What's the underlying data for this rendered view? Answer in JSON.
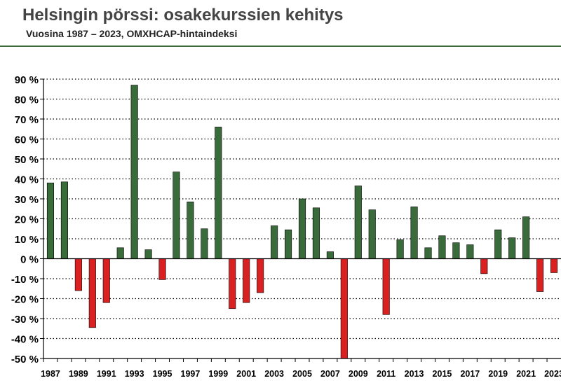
{
  "header": {
    "title": "Helsingin pörssi: osakekurssien kehitys",
    "subtitle": "Vuosina 1987 – 2023, OMXHCAP-hintaindeksi"
  },
  "colors": {
    "positive": "#3a6b3a",
    "negative": "#d92121",
    "rule": "#3a6b3a"
  },
  "chart_data": {
    "type": "bar",
    "title": "Helsingin pörssi: osakekurssien kehitys",
    "subtitle": "Vuosina 1987 – 2023, OMXHCAP-hintaindeksi",
    "xlabel": "",
    "ylabel": "",
    "ylim": [
      -50,
      90
    ],
    "ytick_step": 10,
    "y_tick_suffix": " %",
    "grid": "horizontal dotted",
    "legend": "none",
    "x_tick_labels_every": 2,
    "categories": [
      "1987",
      "1988",
      "1989",
      "1990",
      "1991",
      "1992",
      "1993",
      "1994",
      "1995",
      "1996",
      "1997",
      "1998",
      "1999",
      "2000",
      "2001",
      "2002",
      "2003",
      "2004",
      "2005",
      "2006",
      "2007",
      "2008",
      "2009",
      "2010",
      "2011",
      "2012",
      "2013",
      "2014",
      "2015",
      "2016",
      "2017",
      "2018",
      "2019",
      "2020",
      "2021",
      "2022",
      "2023"
    ],
    "values": [
      38,
      38.5,
      -16,
      -34.5,
      -22,
      5.5,
      87,
      4.5,
      -10.5,
      43.5,
      28.5,
      15,
      66,
      -25,
      -22,
      -17,
      16.5,
      14.5,
      30,
      25.5,
      3.5,
      -50,
      36.5,
      24.5,
      -28,
      9.5,
      26,
      5.5,
      11.5,
      8,
      7,
      -7.5,
      14.5,
      10.5,
      21,
      -16.5,
      -7
    ]
  }
}
